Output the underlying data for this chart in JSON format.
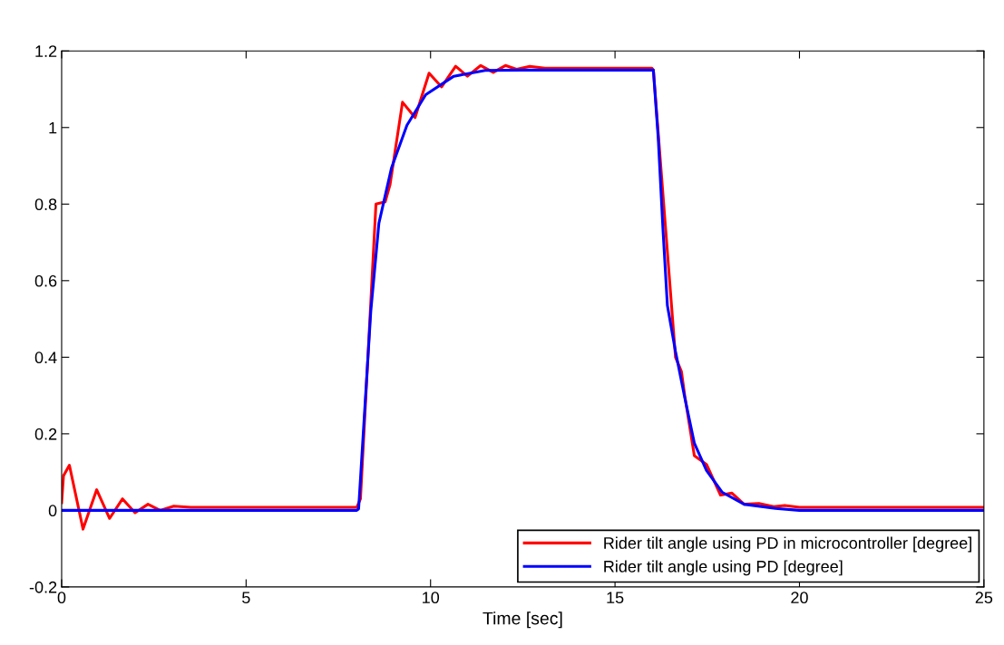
{
  "chart_data": {
    "type": "line",
    "xlabel": "Time [sec]",
    "xlim": [
      0,
      25
    ],
    "xticks": [
      0,
      5,
      10,
      15,
      20,
      25
    ],
    "ylim": [
      -0.2,
      1.2
    ],
    "yticks": [
      -0.2,
      0,
      0.2,
      0.4,
      0.6,
      0.8,
      1,
      1.2
    ],
    "grid": false,
    "legend": "bottom right",
    "line_style": "solid",
    "marker": "none",
    "series": [
      {
        "name": "Rider tilt angle using PD in microcontroller [degree]",
        "color": "#ff0000",
        "x": [
          0,
          0.05,
          0.21,
          0.58,
          0.95,
          1.3,
          1.65,
          1.99,
          2.34,
          2.67,
          3.04,
          3.5,
          8.0,
          8.1,
          8.52,
          8.77,
          8.9,
          9.24,
          9.58,
          9.96,
          10.3,
          10.68,
          11.0,
          11.36,
          11.7,
          12.03,
          12.33,
          12.69,
          13.1,
          16.0,
          16.04,
          16.64,
          16.8,
          16.89,
          17.15,
          17.48,
          17.86,
          18.17,
          18.5,
          18.9,
          19.3,
          19.6,
          20.0,
          25
        ],
        "values": [
          0.02,
          0.09,
          0.118,
          -0.049,
          0.054,
          -0.021,
          0.03,
          -0.006,
          0.016,
          0.0,
          0.011,
          0.008,
          0.008,
          0.03,
          0.8,
          0.806,
          0.85,
          1.066,
          1.026,
          1.142,
          1.106,
          1.16,
          1.134,
          1.162,
          1.144,
          1.162,
          1.152,
          1.16,
          1.155,
          1.155,
          1.15,
          0.4,
          0.363,
          0.3,
          0.143,
          0.12,
          0.04,
          0.045,
          0.016,
          0.018,
          0.01,
          0.013,
          0.008,
          0.008
        ]
      },
      {
        "name": "Rider tilt angle using PD [degree]",
        "color": "#0000ff",
        "x": [
          0,
          8.0,
          8.05,
          8.38,
          8.6,
          8.94,
          9.36,
          9.87,
          10.63,
          11.48,
          12.5,
          16.02,
          16.04,
          16.17,
          16.3,
          16.42,
          16.64,
          16.89,
          17.15,
          17.48,
          17.91,
          18.5,
          19.35,
          20.0,
          25
        ],
        "values": [
          0,
          0,
          0.004,
          0.52,
          0.75,
          0.894,
          1.006,
          1.086,
          1.134,
          1.149,
          1.15,
          1.15,
          1.15,
          0.975,
          0.734,
          0.535,
          0.415,
          0.295,
          0.176,
          0.104,
          0.047,
          0.016,
          0.005,
          0.0,
          0.0
        ]
      }
    ]
  }
}
